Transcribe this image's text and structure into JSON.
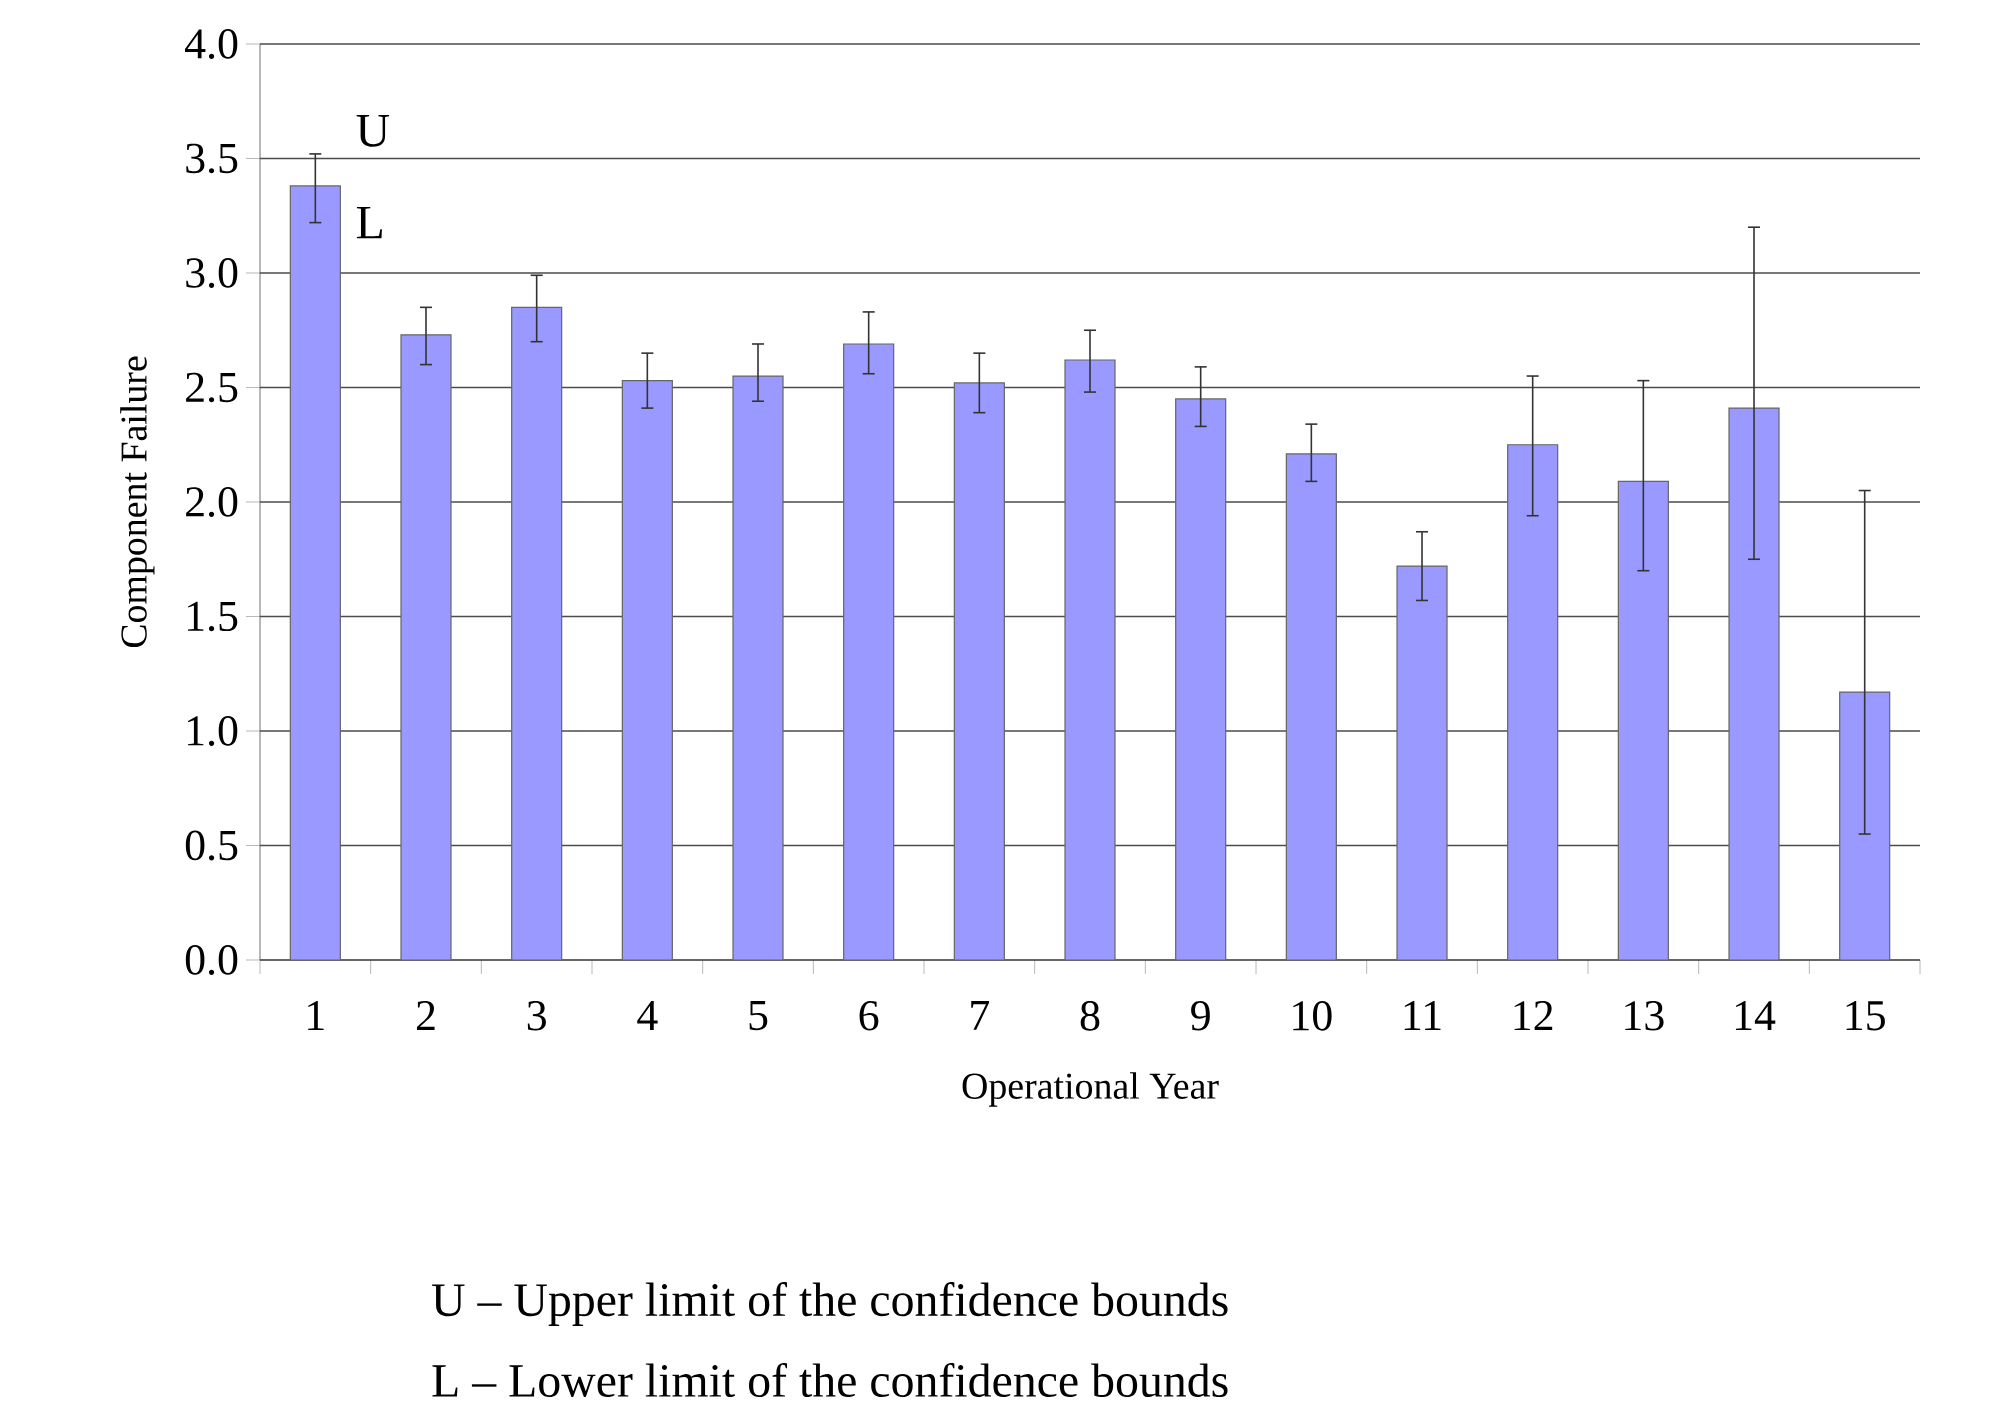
{
  "chart_data": {
    "type": "bar",
    "xlabel": "Operational Year",
    "ylabel": "Component Failure",
    "categories": [
      "1",
      "2",
      "3",
      "4",
      "5",
      "6",
      "7",
      "8",
      "9",
      "10",
      "11",
      "12",
      "13",
      "14",
      "15"
    ],
    "values": [
      3.38,
      2.73,
      2.85,
      2.53,
      2.55,
      2.69,
      2.52,
      2.62,
      2.45,
      2.21,
      1.72,
      2.25,
      2.09,
      2.41,
      1.17
    ],
    "errors": [
      [
        3.22,
        3.52
      ],
      [
        2.6,
        2.85
      ],
      [
        2.7,
        2.99
      ],
      [
        2.41,
        2.65
      ],
      [
        2.44,
        2.69
      ],
      [
        2.56,
        2.83
      ],
      [
        2.39,
        2.65
      ],
      [
        2.48,
        2.75
      ],
      [
        2.33,
        2.59
      ],
      [
        2.09,
        2.34
      ],
      [
        1.57,
        1.87
      ],
      [
        1.94,
        2.55
      ],
      [
        1.7,
        2.53
      ],
      [
        1.75,
        3.2
      ],
      [
        0.55,
        2.05
      ]
    ],
    "color": "#9999ff",
    "ylim": [
      0,
      4
    ],
    "yticks": [
      {
        "value": 0,
        "label": "0.0"
      },
      {
        "value": 0.5,
        "label": "0.5"
      },
      {
        "value": 1,
        "label": "1.0"
      },
      {
        "value": 1.5,
        "label": "1.5"
      },
      {
        "value": 2,
        "label": "2.0"
      },
      {
        "value": 2.5,
        "label": "2.5"
      },
      {
        "value": 3,
        "label": "3.0"
      },
      {
        "value": 3.5,
        "label": "3.5"
      },
      {
        "value": 4,
        "label": "4.0"
      }
    ],
    "grid": "y",
    "annotations": [
      {
        "text": "U",
        "x": "1",
        "y": 3.52
      },
      {
        "text": "L",
        "x": "1",
        "y": 3.22
      },
      "U – Upper limit of the confidence bounds",
      "L – Lower limit of the confidence bounds"
    ]
  }
}
